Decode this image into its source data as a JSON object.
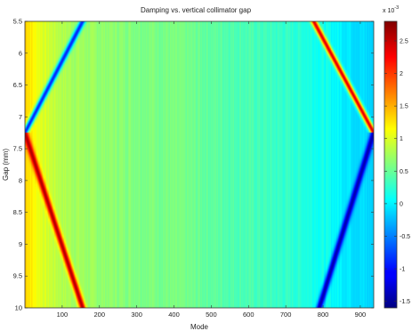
{
  "chart_data": {
    "type": "heatmap",
    "title": "Damping vs. vertical collimator gap",
    "xlabel": "Mode",
    "ylabel": "Gap (mm)",
    "xlim": [
      0,
      936
    ],
    "ylim": [
      5.5,
      10.0
    ],
    "y_reversed": true,
    "x_ticks": [
      100,
      200,
      300,
      400,
      500,
      600,
      700,
      800,
      900
    ],
    "y_ticks": [
      5.5,
      6,
      6.5,
      7,
      7.5,
      8,
      8.5,
      9,
      9.5,
      10
    ],
    "x_tick_labels": [
      "100",
      "200",
      "300",
      "400",
      "500",
      "600",
      "700",
      "800",
      "900"
    ],
    "y_tick_labels": [
      "5.5",
      "6",
      "6.5",
      "7",
      "7.5",
      "8",
      "8.5",
      "9",
      "9.5",
      "10"
    ],
    "colorbar": {
      "min": -1.6,
      "max": 2.8,
      "ticks": [
        -1.5,
        -1,
        -0.5,
        0,
        0.5,
        1,
        1.5,
        2,
        2.5
      ],
      "tick_labels": [
        "-1.5",
        "-1",
        "-0.5",
        "0",
        "0.5",
        "1",
        "1.5",
        "2",
        "2.5"
      ],
      "exponent_label": "x 10",
      "exponent_power": "-3",
      "colormap": "jet"
    },
    "features": [
      {
        "kind": "ridge",
        "side": "left",
        "points": [
          [
            155,
            5.5
          ],
          [
            0,
            7.25
          ],
          [
            155,
            10.0
          ]
        ],
        "above_vertex": -0.9,
        "below_vertex": 2.6
      },
      {
        "kind": "ridge",
        "side": "right",
        "points": [
          [
            775,
            5.5
          ],
          [
            936,
            7.25
          ],
          [
            790,
            10.0
          ]
        ],
        "above_vertex": 2.4,
        "below_vertex": -1.4
      }
    ],
    "background_profile": {
      "x": [
        0,
        25,
        60,
        110,
        180,
        300,
        420,
        520,
        620,
        720,
        800,
        880,
        936
      ],
      "values": [
        1.4,
        1.15,
        0.95,
        0.8,
        0.7,
        0.62,
        0.55,
        0.45,
        0.35,
        0.25,
        0.12,
        -0.05,
        -0.15
      ]
    }
  }
}
